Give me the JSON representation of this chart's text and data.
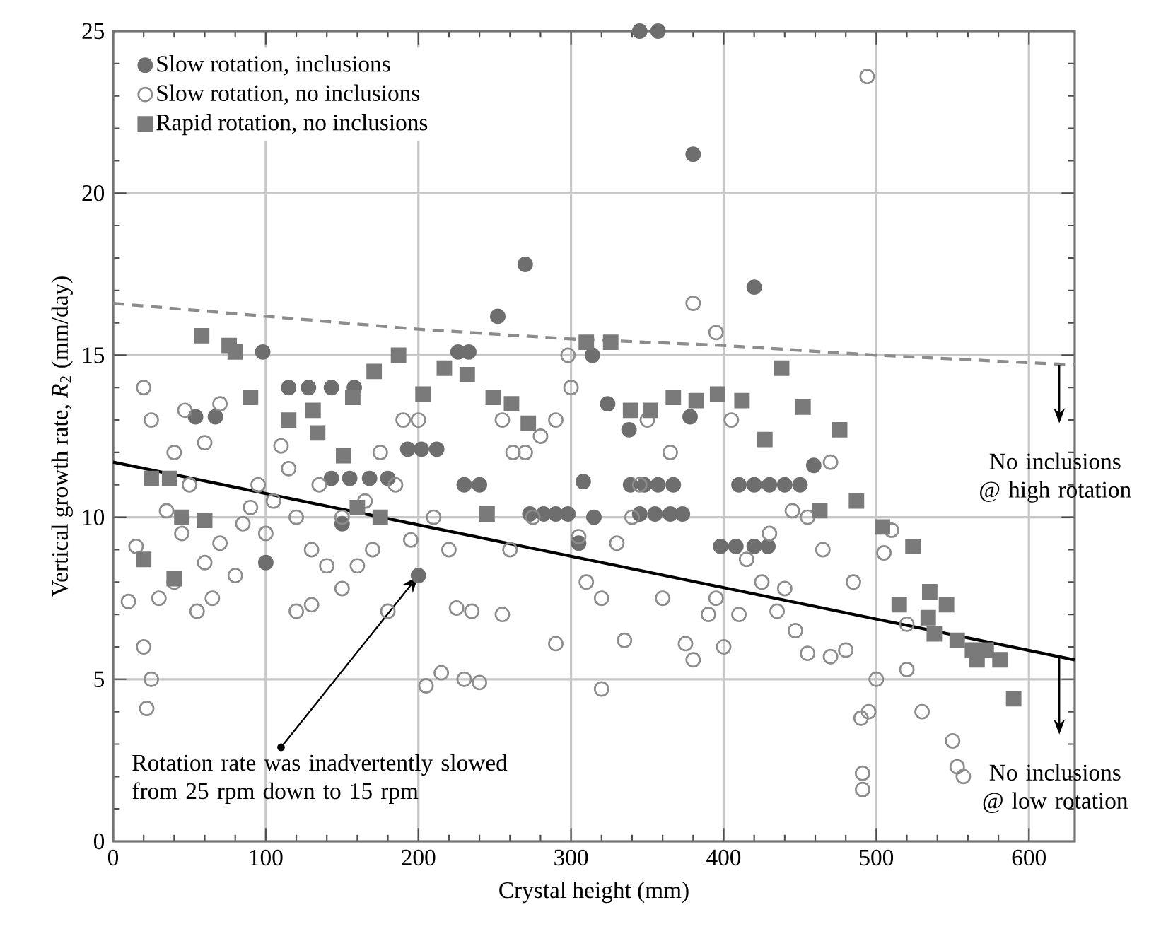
{
  "chart_data": {
    "type": "scatter",
    "xlabel": "Crystal height (mm)",
    "ylabel": "Vertical growth rate, *R*$_{2}$ (mm/day)",
    "xlim": [
      0,
      630
    ],
    "ylim": [
      0,
      25
    ],
    "xticks": [
      0,
      100,
      200,
      300,
      400,
      500,
      600
    ],
    "yticks": [
      0,
      5,
      10,
      15,
      20,
      25
    ],
    "grid": true,
    "legend": "top left",
    "series": [
      {
        "name": "Slow rotation, inclusions",
        "marker": "circle",
        "color": "#6e6e6e",
        "x": [
          200,
          345,
          357,
          380,
          270,
          420,
          252,
          98,
          226,
          233,
          314,
          54,
          67,
          115,
          128,
          143,
          158,
          324,
          338,
          378,
          459,
          193,
          202,
          212,
          143,
          155,
          168,
          180,
          308,
          339,
          348,
          357,
          367,
          410,
          420,
          430,
          440,
          450,
          273,
          282,
          290,
          298,
          345,
          355,
          365,
          373,
          398,
          408,
          420,
          429,
          100,
          150,
          230,
          240,
          315,
          305
        ],
        "values": [
          8.2,
          25,
          25,
          21.2,
          17.8,
          17.1,
          16.2,
          15.1,
          15.1,
          15.1,
          15.0,
          13.1,
          13.1,
          14.0,
          14.0,
          14.0,
          14.0,
          13.5,
          12.7,
          13.1,
          11.6,
          12.1,
          12.1,
          12.1,
          11.2,
          11.2,
          11.2,
          11.2,
          11.1,
          11.0,
          11.0,
          11.0,
          11.0,
          11.0,
          11.0,
          11.0,
          11.0,
          11.0,
          10.1,
          10.1,
          10.1,
          10.1,
          10.1,
          10.1,
          10.1,
          10.1,
          9.1,
          9.1,
          9.1,
          9.1,
          8.6,
          9.8,
          11.0,
          11.0,
          10.0,
          9.2
        ]
      },
      {
        "name": "Slow rotation, no inclusions",
        "marker": "open circle",
        "color": "#8c8c8c",
        "x": [
          20,
          25,
          40,
          47,
          60,
          70,
          50,
          35,
          15,
          10,
          20,
          25,
          22,
          30,
          40,
          55,
          65,
          80,
          85,
          95,
          105,
          110,
          120,
          130,
          140,
          150,
          160,
          170,
          180,
          120,
          130,
          100,
          90,
          70,
          60,
          45,
          115,
          135,
          150,
          165,
          175,
          190,
          200,
          185,
          195,
          210,
          220,
          225,
          235,
          205,
          215,
          230,
          240,
          255,
          262,
          275,
          280,
          290,
          298,
          300,
          305,
          310,
          320,
          330,
          340,
          345,
          335,
          290,
          255,
          320,
          360,
          375,
          380,
          390,
          400,
          380,
          395,
          405,
          415,
          425,
          440,
          430,
          445,
          455,
          470,
          465,
          470,
          480,
          485,
          490,
          495,
          500,
          505,
          510,
          520,
          494,
          491,
          491,
          550,
          553,
          557,
          530,
          520,
          455,
          447,
          435,
          410,
          395,
          365,
          350,
          270,
          260
        ],
        "values": [
          14.0,
          13.0,
          12.0,
          13.3,
          12.3,
          13.5,
          11.0,
          10.2,
          9.1,
          7.4,
          6.0,
          5.0,
          4.1,
          7.5,
          8.0,
          7.1,
          7.5,
          8.2,
          9.8,
          11.0,
          10.5,
          12.2,
          10.0,
          9.0,
          8.5,
          7.8,
          8.5,
          9.0,
          7.1,
          7.1,
          7.3,
          9.5,
          10.3,
          9.2,
          8.6,
          9.5,
          11.5,
          11.0,
          10.0,
          10.5,
          12.0,
          13.0,
          13.0,
          11.0,
          9.3,
          10.0,
          9.0,
          7.2,
          7.1,
          4.8,
          5.2,
          5.0,
          4.9,
          13.0,
          12.0,
          10.0,
          12.5,
          13.0,
          15.0,
          14.0,
          9.4,
          8.0,
          7.5,
          9.2,
          10.0,
          11.0,
          6.2,
          6.1,
          7.0,
          4.7,
          7.5,
          6.1,
          5.6,
          7.0,
          6.0,
          16.6,
          15.7,
          13.0,
          8.7,
          8.0,
          7.8,
          9.5,
          10.2,
          10.0,
          11.7,
          9.0,
          5.7,
          5.9,
          8.0,
          3.8,
          4.0,
          5.0,
          8.9,
          9.6,
          6.7,
          23.6,
          2.1,
          1.6,
          3.1,
          2.3,
          2.0,
          4.0,
          5.3,
          5.8,
          6.5,
          7.1,
          7.0,
          7.5,
          12.0,
          13.0,
          12.0,
          9.0
        ]
      },
      {
        "name": "Rapid rotation, no inclusions",
        "marker": "square",
        "color": "#7a7a7a",
        "x": [
          58,
          76,
          80,
          90,
          115,
          131,
          171,
          187,
          157,
          203,
          134,
          151,
          217,
          232,
          261,
          272,
          310,
          326,
          339,
          352,
          367,
          382,
          396,
          412,
          438,
          452,
          427,
          476,
          463,
          487,
          504,
          524,
          535,
          546,
          515,
          534,
          538,
          553,
          563,
          572,
          581,
          566,
          590,
          249,
          20,
          28,
          40,
          25,
          37,
          45,
          60,
          160,
          175,
          245
        ],
        "values": [
          15.6,
          15.3,
          15.1,
          13.7,
          13.0,
          13.3,
          14.5,
          15.0,
          13.7,
          13.8,
          12.6,
          11.9,
          14.6,
          14.4,
          13.5,
          12.9,
          15.4,
          15.4,
          13.3,
          13.3,
          13.7,
          13.6,
          13.8,
          13.6,
          14.6,
          13.4,
          12.4,
          12.7,
          10.2,
          10.5,
          9.7,
          9.1,
          7.7,
          7.3,
          7.3,
          6.9,
          6.4,
          6.2,
          5.9,
          5.9,
          5.6,
          5.6,
          4.4,
          13.7,
          8.7,
          null,
          8.1,
          11.2,
          11.2,
          10.0,
          9.9,
          10.3,
          10.0,
          10.1
        ]
      },
      {
        "type": "line",
        "line_style": "dashed",
        "marker": "none",
        "color": "#8c8c8c",
        "x": [
          0,
          100,
          200,
          300,
          400,
          500,
          630
        ],
        "values": [
          16.6,
          16.2,
          15.8,
          15.5,
          15.3,
          15.0,
          14.7
        ]
      },
      {
        "type": "line",
        "line_style": "solid",
        "marker": "none",
        "color": "#000000",
        "x": [
          0,
          630
        ],
        "values": [
          11.7,
          5.6
        ]
      }
    ],
    "annotations": [
      {
        "text": "Rotation rate was inadvertently slowed from 25 rpm down to 15 rpm",
        "x": 200,
        "y": 8.2
      },
      "No inclusions @ high rotation",
      "No inclusions @ low rotation"
    ]
  }
}
